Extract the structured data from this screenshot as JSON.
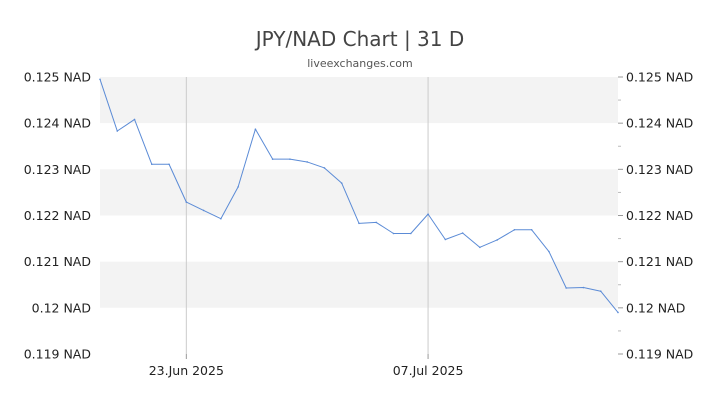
{
  "chart_data": {
    "type": "line",
    "title": "JPY/NAD Chart | 31 D",
    "subtitle": "liveexchanges.com",
    "xlabel": "",
    "ylabel": "",
    "ylim": [
      0.119,
      0.125
    ],
    "y_ticks": [
      {
        "value": 0.125,
        "label": "0.125 NAD"
      },
      {
        "value": 0.124,
        "label": "0.124 NAD"
      },
      {
        "value": 0.123,
        "label": "0.123 NAD"
      },
      {
        "value": 0.122,
        "label": "0.122 NAD"
      },
      {
        "value": 0.121,
        "label": "0.121 NAD"
      },
      {
        "value": 0.12,
        "label": "0.12 NAD"
      },
      {
        "value": 0.119,
        "label": "0.119 NAD"
      }
    ],
    "x_ticks": [
      {
        "index": 5,
        "label": "23.Jun 2025"
      },
      {
        "index": 19,
        "label": "07.Jul 2025"
      }
    ],
    "grid": true,
    "line_color": "#5b8bd6",
    "band_color": "#f3f3f3",
    "series": [
      {
        "values": [
          0.12495,
          0.12383,
          0.12408,
          0.12311,
          0.12311,
          0.12229,
          0.12211,
          0.12193,
          0.12262,
          0.12387,
          0.12322,
          0.12322,
          0.12316,
          0.12303,
          0.1227,
          0.12183,
          0.12185,
          0.12161,
          0.12161,
          0.12203,
          0.12148,
          0.12162,
          0.12131,
          0.12147,
          0.12169,
          0.12169,
          0.12122,
          0.12043,
          0.12044,
          0.12036,
          0.1199
        ]
      }
    ]
  }
}
